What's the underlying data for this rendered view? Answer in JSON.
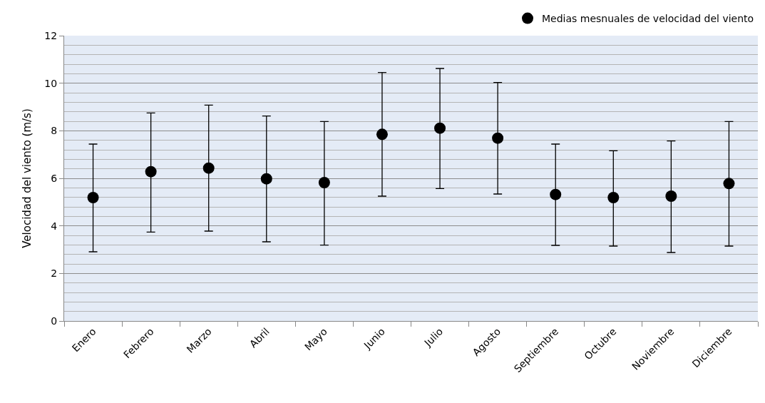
{
  "chart_data": {
    "type": "scatter",
    "ylabel": "Velocidad del viento (m/s)",
    "categories": [
      "Enero",
      "Febrero",
      "Marzo",
      "Abril",
      "Mayo",
      "Junio",
      "Julio",
      "Agosto",
      "Septiembre",
      "Octubre",
      "Noviembre",
      "Diciembre"
    ],
    "series": [
      {
        "name": "Medias mesnuales de velocidad del viento",
        "color": "#000000",
        "values": [
          5.19,
          6.28,
          6.43,
          5.98,
          5.82,
          7.85,
          8.11,
          7.69,
          5.32,
          5.19,
          5.25,
          5.78
        ],
        "errors": [
          [
            2.91,
            7.44
          ],
          [
            3.74,
            8.75
          ],
          [
            3.78,
            9.08
          ],
          [
            3.33,
            8.62
          ],
          [
            3.19,
            8.39
          ],
          [
            5.25,
            10.45
          ],
          [
            5.57,
            10.62
          ],
          [
            5.34,
            10.03
          ],
          [
            3.18,
            7.44
          ],
          [
            3.15,
            7.16
          ],
          [
            2.88,
            7.57
          ],
          [
            3.15,
            8.39
          ]
        ]
      }
    ],
    "ylim": [
      0,
      12
    ],
    "yticks": [
      0,
      2,
      4,
      6,
      8,
      10,
      12
    ],
    "grid": "y",
    "legend": "top right",
    "marker": "circle"
  }
}
